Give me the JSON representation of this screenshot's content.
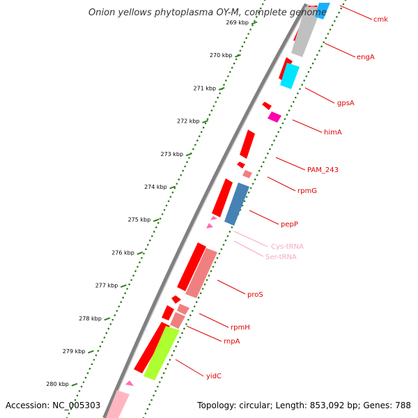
{
  "title": "Onion yellows phytoplasma OY-M, complete genome",
  "footer": {
    "accession": "Accession: NC_005303",
    "topology": "Topology: circular; Length: 853,092 bp; Genes: 788"
  },
  "colors": {
    "backbone": "#808080",
    "kbp_tick": "#2e7d1e",
    "label_line_red": "#e00000",
    "label_line_pink": "#f5a6c8",
    "cds_red": "#ff0000",
    "cds_salmon": "#f08080",
    "cds_gray": "#c0c0c0",
    "cds_cyan": "#00ffff",
    "cds_magenta": "#ff00aa",
    "cds_steelblue": "#4682b4",
    "cds_lime": "#adff2f",
    "cds_pink": "#ffb6c1"
  },
  "kbp_labels": [
    "269 kbp",
    "270 kbp",
    "271 kbp",
    "272 kbp",
    "273 kbp",
    "274 kbp",
    "275 kbp",
    "276 kbp",
    "277 kbp",
    "278 kbp",
    "279 kbp",
    "280 kbp"
  ],
  "genes": [
    {
      "name": "cmk",
      "color": "#e00000"
    },
    {
      "name": "engA",
      "color": "#e00000"
    },
    {
      "name": "gpsA",
      "color": "#e00000"
    },
    {
      "name": "himA",
      "color": "#e00000"
    },
    {
      "name": "PAM_243",
      "color": "#e00000"
    },
    {
      "name": "rpmG",
      "color": "#e00000"
    },
    {
      "name": "pepP",
      "color": "#e00000"
    },
    {
      "name": "Cys-tRNA",
      "color": "#f5a6c8"
    },
    {
      "name": "Ser-tRNA",
      "color": "#f5a6c8"
    },
    {
      "name": "proS",
      "color": "#e00000"
    },
    {
      "name": "rpmH",
      "color": "#e00000"
    },
    {
      "name": "rnpA",
      "color": "#e00000"
    },
    {
      "name": "yidC",
      "color": "#e00000"
    }
  ]
}
